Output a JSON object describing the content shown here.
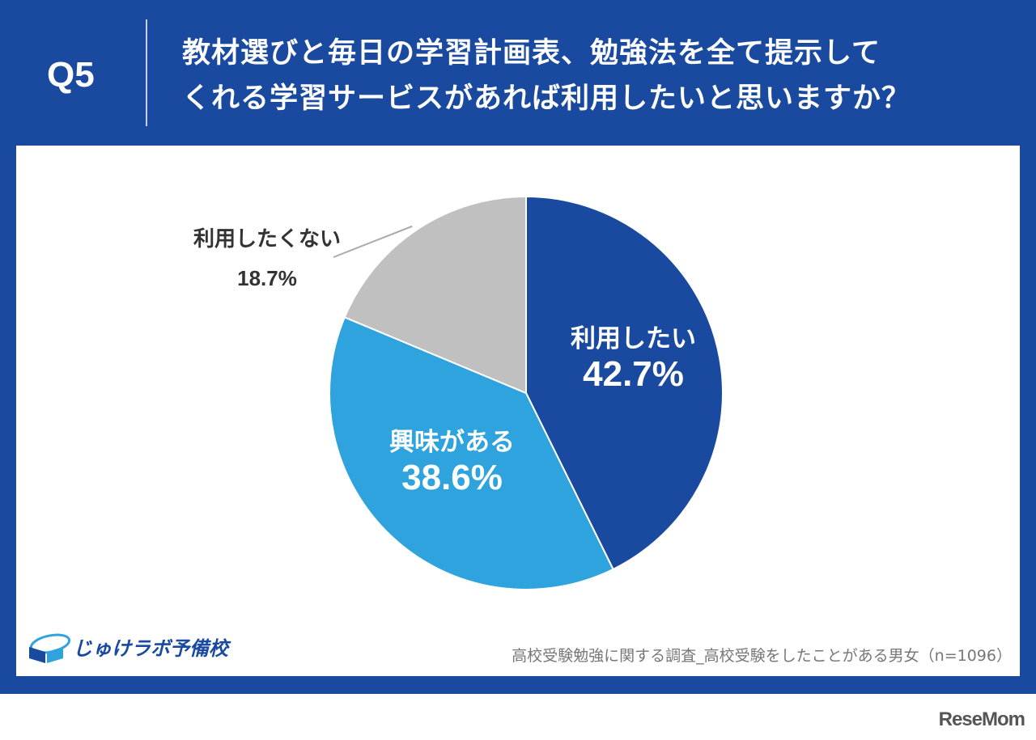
{
  "header": {
    "q_label": "Q5",
    "question_line1": "教材選びと毎日の学習計画表、勉強法を全て提示して",
    "question_line2": "くれる学習サービスがあれば利用したいと思いますか？"
  },
  "chart_data": {
    "type": "pie",
    "title": "教材選びと毎日の学習計画表、勉強法を全て提示してくれる学習サービスがあれば利用したいと思いますか？",
    "slices": [
      {
        "label": "利用したい",
        "value": 42.7,
        "display": "42.7%",
        "color": "#1a4aa0"
      },
      {
        "label": "興味がある",
        "value": 38.6,
        "display": "38.6%",
        "color": "#2ea3dd"
      },
      {
        "label": "利用したくない",
        "value": 18.7,
        "display": "18.7%",
        "color": "#c0c0c0"
      }
    ],
    "start": "12 o'clock",
    "direction": "clockwise"
  },
  "footer": {
    "logo_text": "じゅけラボ予備校",
    "source": "高校受験勉強に関する調査_高校受験をしたことがある男女（n=1096）",
    "watermark": "ReseMom"
  }
}
